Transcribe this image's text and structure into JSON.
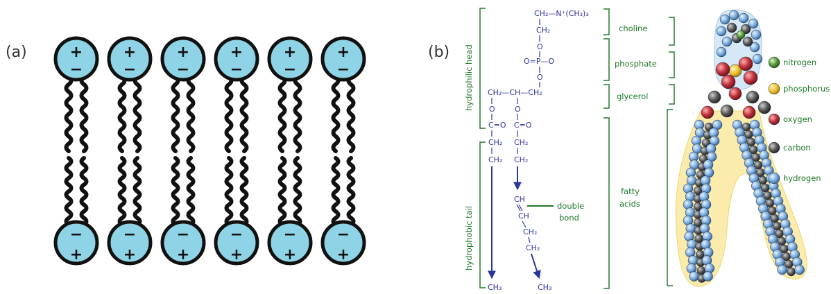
{
  "panel_a": {
    "label": "(a)",
    "head_count": 6,
    "top_signs": {
      "upper": "+",
      "lower": "−"
    },
    "bottom_signs": {
      "upper": "−",
      "lower": "+"
    }
  },
  "panel_b": {
    "label": "(b)",
    "region_labels": {
      "head": "hydrophilic head",
      "tail": "hydrophobic tail"
    },
    "structure": {
      "choline_top": "CH₂—N⁺(CH₃)₃",
      "ch2_a": "CH₂",
      "o_1": "O",
      "phosphate_row": "O=P—O",
      "o_2": "O",
      "glycerol_row": "CH₂—CH—CH₂",
      "o_left": "O",
      "o_right": "O",
      "carbonyl_left": "C=O",
      "carbonyl_right": "C=O",
      "ch2_left_1": "CH₂",
      "ch2_left_2": "CH₂",
      "ch2_right_1": "CH₂",
      "ch2_right_2": "CH₂",
      "ch_1": "CH",
      "ch_2": "CH",
      "ch2_right_3": "CH₂",
      "ch2_right_4": "CH₂",
      "ch3_left": "CH₃",
      "ch3_right": "CH₃",
      "double_bond_label_1": "double",
      "double_bond_label_2": "bond"
    },
    "group_labels": {
      "choline": "choline",
      "phosphate": "phosphate",
      "glycerol": "glycerol",
      "fatty_acids_1": "fatty",
      "fatty_acids_2": "acids"
    },
    "legend": [
      {
        "label": "nitrogen",
        "color": "#5a9a3a"
      },
      {
        "label": "phosphorus",
        "color": "#f2c12e"
      },
      {
        "label": "oxygen",
        "color": "#c0313a"
      },
      {
        "label": "carbon",
        "color": "#555555"
      },
      {
        "label": "hydrogen",
        "color": "#6a9fd6"
      }
    ],
    "colors": {
      "head_fill": "#8fd3e6",
      "structure_blue": "#2b35a0",
      "label_green": "#1f7a2a"
    }
  }
}
